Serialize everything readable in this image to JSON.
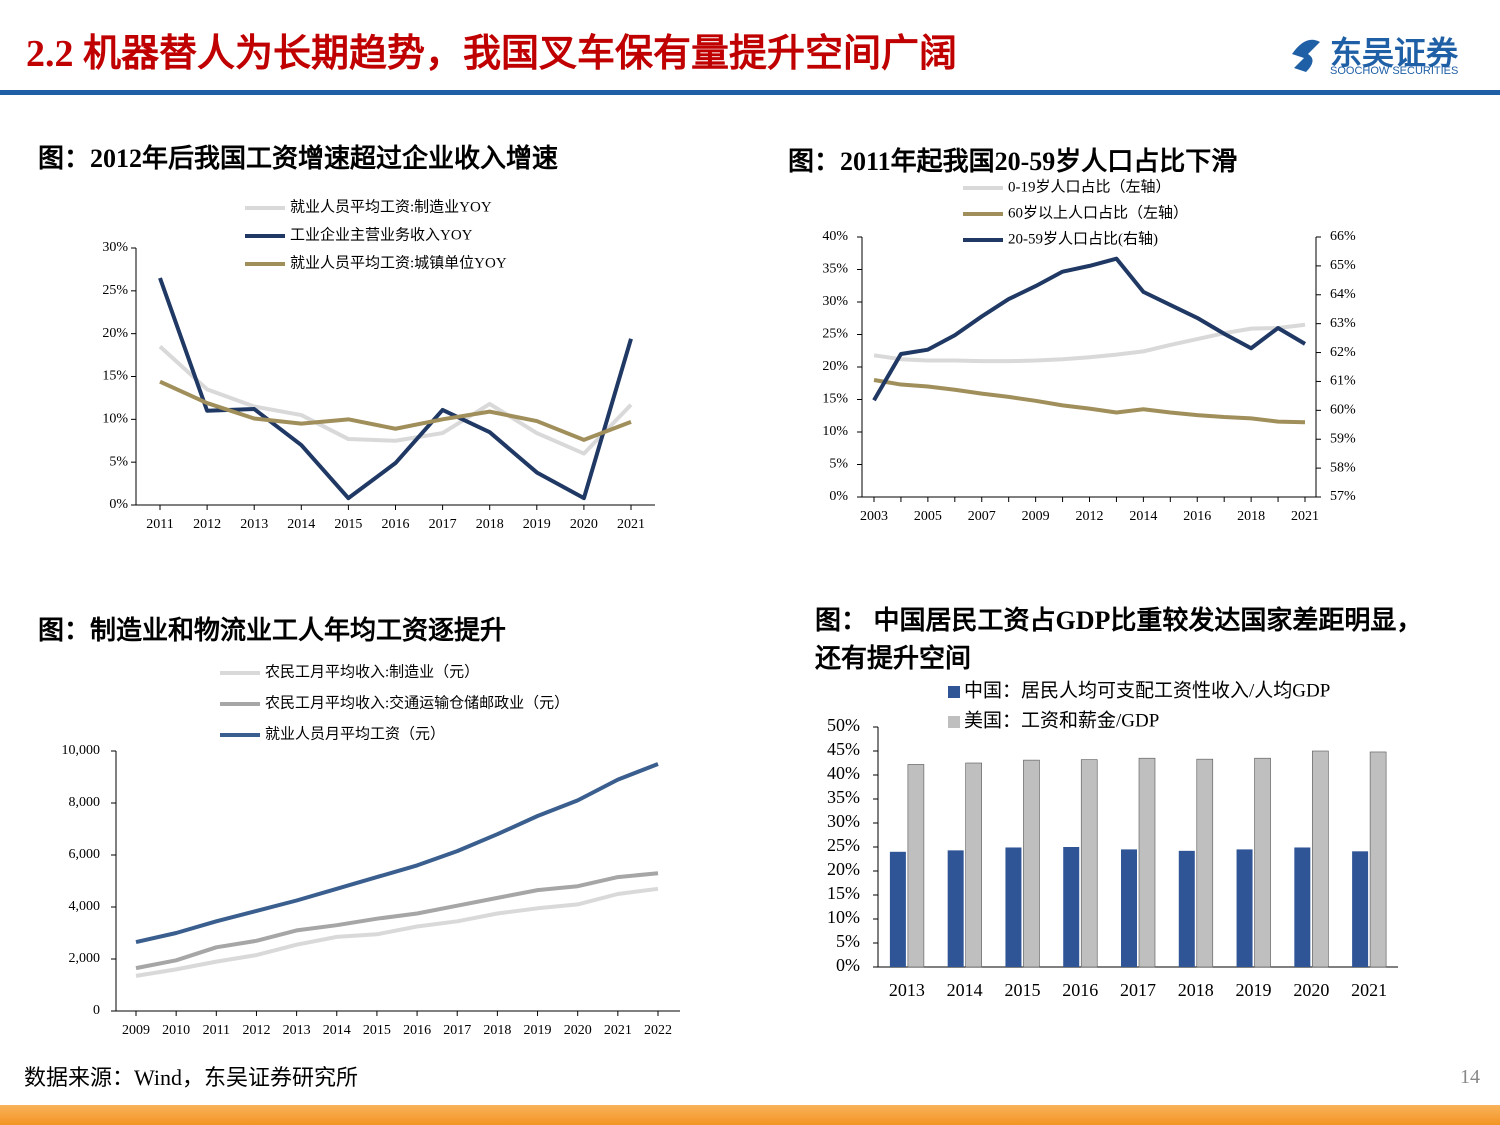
{
  "header": {
    "title": "2.2 机器替人为长期趋势，我国叉车保有量提升空间广阔",
    "logo_name": "东吴证券",
    "logo_english": "SOOCHOW SECURITIES"
  },
  "footer": {
    "source": "数据来源：Wind，东吴证券研究所",
    "page": "14"
  },
  "chart_data": [
    {
      "type": "line",
      "title": "图：2012年后我国工资增速超过企业收入增速",
      "categories": [
        "2011",
        "2012",
        "2013",
        "2014",
        "2015",
        "2016",
        "2017",
        "2018",
        "2019",
        "2020",
        "2021"
      ],
      "series": [
        {
          "name": "就业人员平均工资:制造业YOY",
          "color": "#d9d9d9",
          "values": [
            18.5,
            13.5,
            11.5,
            10.5,
            7.7,
            7.5,
            8.4,
            11.8,
            8.4,
            6.0,
            11.7
          ]
        },
        {
          "name": "工业企业主营业务收入YOY",
          "color": "#1f3864",
          "values": [
            26.5,
            11.0,
            11.2,
            7.0,
            0.8,
            4.9,
            11.1,
            8.5,
            3.8,
            0.8,
            19.4
          ]
        },
        {
          "name": "就业人员平均工资:城镇单位YOY",
          "color": "#a08f5b",
          "values": [
            14.4,
            11.9,
            10.1,
            9.5,
            10.0,
            8.9,
            10.0,
            10.9,
            9.8,
            7.6,
            9.7
          ]
        }
      ],
      "ylim": [
        0,
        30
      ],
      "yticks": [
        {
          "value": 0,
          "label": "0%"
        },
        {
          "value": 5,
          "label": "5%"
        },
        {
          "value": 10,
          "label": "10%"
        },
        {
          "value": 15,
          "label": "15%"
        },
        {
          "value": 20,
          "label": "20%"
        },
        {
          "value": 25,
          "label": "25%"
        },
        {
          "value": 30,
          "label": "30%"
        }
      ],
      "grid": false
    },
    {
      "type": "line",
      "title": "图：2011年起我国20-59岁人口占比下滑",
      "categories": [
        "2003",
        null,
        "2005",
        null,
        "2007",
        null,
        "2009",
        null,
        "2012",
        null,
        "2014",
        null,
        "2016",
        null,
        "2018",
        null,
        "2021"
      ],
      "series": [
        {
          "name": "0-19岁人口占比（左轴）",
          "color": "#d9d9d9",
          "values": [
            21.8,
            21.2,
            21.0,
            21.0,
            20.9,
            20.9,
            21.0,
            21.2,
            21.5,
            21.9,
            22.4,
            23.4,
            24.3,
            25.2,
            25.9,
            26.0,
            26.5
          ]
        },
        {
          "name": "60岁以上人口占比（左轴）",
          "color": "#a08f5b",
          "values": [
            18.0,
            17.3,
            17.0,
            16.5,
            15.9,
            15.4,
            14.8,
            14.1,
            13.6,
            13.0,
            13.5,
            13.0,
            12.6,
            12.3,
            12.1,
            11.6,
            11.5
          ]
        },
        {
          "name": "20-59岁人口占比(右轴)",
          "color": "#1f3864",
          "axis": "y2",
          "values": [
            60.35,
            61.95,
            62.1,
            62.6,
            63.25,
            63.85,
            64.3,
            64.8,
            65.0,
            65.25,
            64.1,
            63.65,
            63.2,
            62.65,
            62.15,
            62.85,
            62.3
          ]
        }
      ],
      "ylim": [
        0,
        40
      ],
      "yticks": [
        {
          "value": 0,
          "label": "0%"
        },
        {
          "value": 5,
          "label": "5%"
        },
        {
          "value": 10,
          "label": "10%"
        },
        {
          "value": 15,
          "label": "15%"
        },
        {
          "value": 20,
          "label": "20%"
        },
        {
          "value": 25,
          "label": "25%"
        },
        {
          "value": 30,
          "label": "30%"
        },
        {
          "value": 35,
          "label": "35%"
        },
        {
          "value": 40,
          "label": "40%"
        }
      ],
      "y2lim": [
        57,
        66
      ],
      "y2ticks": [
        {
          "value": 57,
          "label": "57%"
        },
        {
          "value": 58,
          "label": "58%"
        },
        {
          "value": 59,
          "label": "59%"
        },
        {
          "value": 60,
          "label": "60%"
        },
        {
          "value": 61,
          "label": "61%"
        },
        {
          "value": 62,
          "label": "62%"
        },
        {
          "value": 63,
          "label": "63%"
        },
        {
          "value": 64,
          "label": "64%"
        },
        {
          "value": 65,
          "label": "65%"
        },
        {
          "value": 66,
          "label": "66%"
        }
      ],
      "grid": false
    },
    {
      "type": "line",
      "title": "图：制造业和物流业工人年均工资逐提升",
      "categories": [
        "2009",
        "2010",
        "2011",
        "2012",
        "2013",
        "2014",
        "2015",
        "2016",
        "2017",
        "2018",
        "2019",
        "2020",
        "2021",
        "2022"
      ],
      "series": [
        {
          "name": "农民工月平均收入:制造业（元）",
          "color": "#d9d9d9",
          "values": [
            1350,
            1600,
            1900,
            2150,
            2550,
            2850,
            2950,
            3250,
            3450,
            3750,
            3950,
            4100,
            4500,
            4700
          ]
        },
        {
          "name": "农民工月平均收入:交通运输仓储邮政业（元）",
          "color": "#a6a6a6",
          "values": [
            1650,
            1950,
            2450,
            2700,
            3100,
            3300,
            3550,
            3750,
            4050,
            4350,
            4650,
            4800,
            5150,
            5300
          ]
        },
        {
          "name": "就业人员月平均工资（元）",
          "color": "#3a5f8f",
          "values": [
            2650,
            3000,
            3450,
            3850,
            4250,
            4700,
            5150,
            5600,
            6150,
            6800,
            7500,
            8100,
            8900,
            9500
          ]
        }
      ],
      "ylim": [
        0,
        10000
      ],
      "yticks": [
        0,
        {
          "value": 2000,
          "label": "2,000"
        },
        {
          "value": 4000,
          "label": "4,000"
        },
        {
          "value": 6000,
          "label": "6,000"
        },
        {
          "value": 8000,
          "label": "8,000"
        },
        {
          "value": 10000,
          "label": "10,000"
        }
      ],
      "grid": false
    },
    {
      "type": "bar",
      "title": "图： 中国居民工资占GDP比重较发达国家差距明显，还有提升空间",
      "categories": [
        "2013",
        "2014",
        "2015",
        "2016",
        "2017",
        "2018",
        "2019",
        "2020",
        "2021"
      ],
      "series": [
        {
          "name": "中国：居民人均可支配工资性收入/人均GDP",
          "color": "#2f5597",
          "values": [
            24.0,
            24.3,
            24.9,
            25.0,
            24.5,
            24.2,
            24.5,
            24.9,
            24.1
          ]
        },
        {
          "name": "美国：工资和薪金/GDP",
          "color": "#bfbfbf",
          "values": [
            42.2,
            42.5,
            43.1,
            43.2,
            43.5,
            43.3,
            43.5,
            45.0,
            44.8
          ]
        }
      ],
      "ylim": [
        0,
        50
      ],
      "yticks": [
        {
          "value": 0,
          "label": "0%"
        },
        {
          "value": 5,
          "label": "5%"
        },
        {
          "value": 10,
          "label": "10%"
        },
        {
          "value": 15,
          "label": "15%"
        },
        {
          "value": 20,
          "label": "20%"
        },
        {
          "value": 25,
          "label": "25%"
        },
        {
          "value": 30,
          "label": "30%"
        },
        {
          "value": 35,
          "label": "35%"
        },
        {
          "value": 40,
          "label": "40%"
        },
        {
          "value": 45,
          "label": "45%"
        },
        {
          "value": 50,
          "label": "50%"
        }
      ],
      "grid": false
    }
  ]
}
